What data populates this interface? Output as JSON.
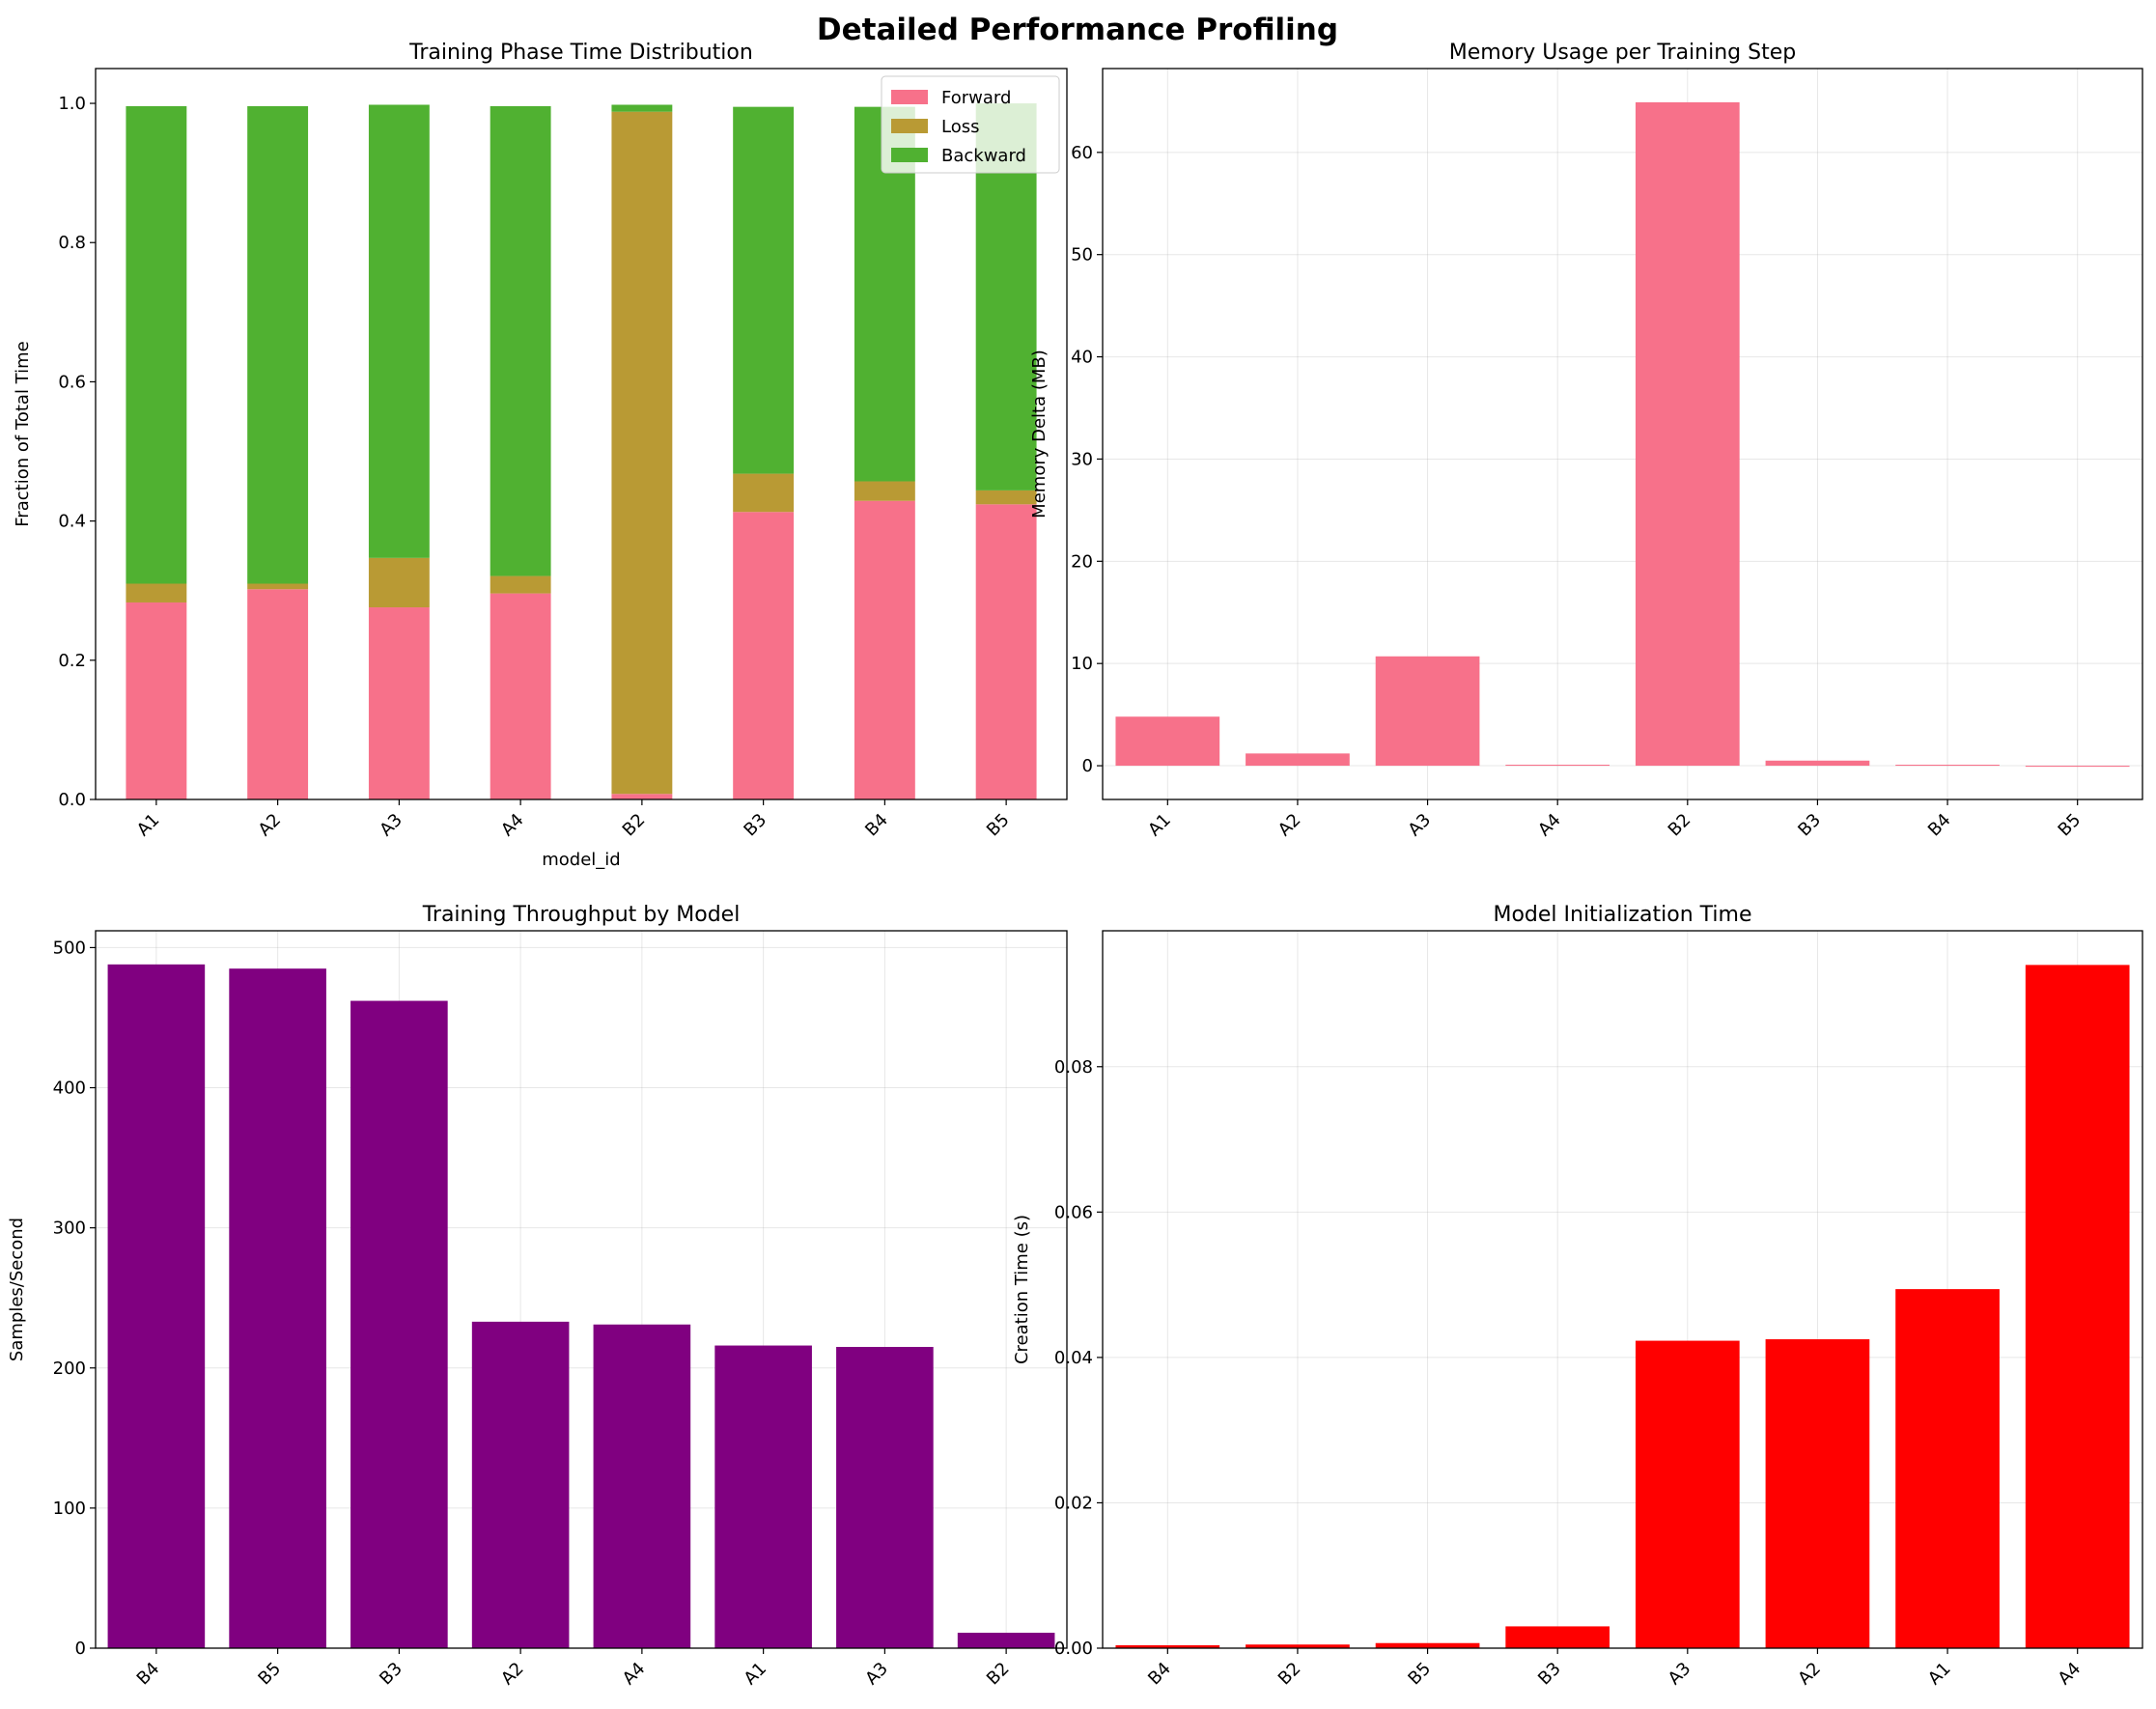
{
  "figure": {
    "title": "Detailed Performance Profiling"
  },
  "chart_data": [
    {
      "type": "bar",
      "stacked": true,
      "title": "Training Phase Time Distribution",
      "xlabel": "model_id",
      "ylabel": "Fraction of Total Time",
      "categories": [
        "A1",
        "A2",
        "A3",
        "A4",
        "B2",
        "B3",
        "B4",
        "B5"
      ],
      "series": [
        {
          "name": "Forward",
          "color": "#f7718a",
          "values": [
            0.283,
            0.302,
            0.276,
            0.296,
            0.008,
            0.413,
            0.429,
            0.424
          ]
        },
        {
          "name": "Loss",
          "color": "#b99a34",
          "values": [
            0.027,
            0.008,
            0.071,
            0.025,
            0.98,
            0.055,
            0.028,
            0.02
          ]
        },
        {
          "name": "Backward",
          "color": "#50b131",
          "values": [
            0.686,
            0.686,
            0.651,
            0.675,
            0.01,
            0.527,
            0.538,
            0.556
          ]
        }
      ],
      "ylim": [
        0,
        1.05
      ],
      "yticks": [
        "0.0",
        "0.2",
        "0.4",
        "0.6",
        "0.8",
        "1.0"
      ],
      "grid": false,
      "legend": "top-right"
    },
    {
      "type": "bar",
      "title": "Memory Usage per Training Step",
      "xlabel": "",
      "ylabel": "Memory Delta (MB)",
      "categories": [
        "A1",
        "A2",
        "A3",
        "A4",
        "B2",
        "B3",
        "B4",
        "B5"
      ],
      "values": [
        4.8,
        1.2,
        10.7,
        0.1,
        64.9,
        0.5,
        0.1,
        -0.1
      ],
      "color": "#f7718a",
      "ylim": [
        -3.3,
        68.2
      ],
      "yticks": [
        "0",
        "10",
        "20",
        "30",
        "40",
        "50",
        "60"
      ],
      "grid": true
    },
    {
      "type": "bar",
      "title": "Training Throughput by Model",
      "xlabel": "",
      "ylabel": "Samples/Second",
      "categories": [
        "B4",
        "B5",
        "B3",
        "A2",
        "A4",
        "A1",
        "A3",
        "B2"
      ],
      "values": [
        488,
        485,
        462,
        233,
        231,
        216,
        215,
        11
      ],
      "color": "#800080",
      "ylim": [
        0,
        512
      ],
      "yticks": [
        "0",
        "100",
        "200",
        "300",
        "400",
        "500"
      ],
      "grid": true
    },
    {
      "type": "bar",
      "title": "Model Initialization Time",
      "xlabel": "",
      "ylabel": "Creation Time (s)",
      "categories": [
        "B4",
        "B2",
        "B5",
        "B3",
        "A3",
        "A2",
        "A1",
        "A4"
      ],
      "values": [
        0.0004,
        0.0005,
        0.0007,
        0.003,
        0.0423,
        0.0425,
        0.0494,
        0.094
      ],
      "color": "#ff0000",
      "ylim": [
        0,
        0.0987
      ],
      "yticks": [
        "0.00",
        "0.02",
        "0.04",
        "0.06",
        "0.08"
      ],
      "grid": true
    }
  ]
}
